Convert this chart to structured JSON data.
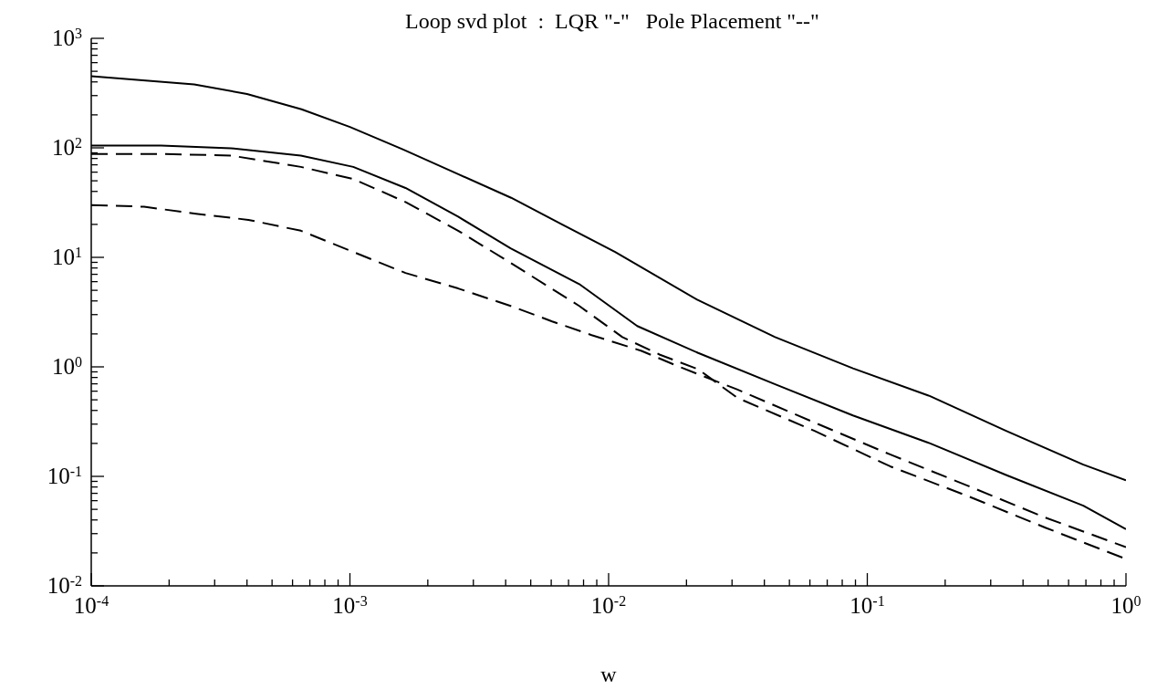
{
  "chart_data": {
    "type": "line",
    "title": "Loop svd plot  :  LQR \"-\"   Pole Placement \"--\"",
    "xlabel": "w",
    "log": "xy",
    "marker": "none",
    "xlim": [
      0.0001,
      1
    ],
    "ylim": [
      0.01,
      1000
    ],
    "xticks": [
      {
        "value": 0.0001,
        "label": "10$^{-4}$"
      },
      {
        "value": 0.0002,
        "label": null
      },
      {
        "value": 0.0003,
        "label": null
      },
      {
        "value": 0.0004,
        "label": null
      },
      {
        "value": 0.0005,
        "label": null
      },
      {
        "value": 0.0006,
        "label": null
      },
      {
        "value": 0.0007,
        "label": null
      },
      {
        "value": 0.0008,
        "label": null
      },
      {
        "value": 0.0009,
        "label": null
      },
      {
        "value": 0.001,
        "label": "10$^{-3}$"
      },
      {
        "value": 0.002,
        "label": null
      },
      {
        "value": 0.003,
        "label": null
      },
      {
        "value": 0.004,
        "label": null
      },
      {
        "value": 0.005,
        "label": null
      },
      {
        "value": 0.006,
        "label": null
      },
      {
        "value": 0.007,
        "label": null
      },
      {
        "value": 0.008,
        "label": null
      },
      {
        "value": 0.009,
        "label": null
      },
      {
        "value": 0.01,
        "label": "10$^{-2}$"
      },
      {
        "value": 0.02,
        "label": null
      },
      {
        "value": 0.03,
        "label": null
      },
      {
        "value": 0.04,
        "label": null
      },
      {
        "value": 0.05,
        "label": null
      },
      {
        "value": 0.06,
        "label": null
      },
      {
        "value": 0.07,
        "label": null
      },
      {
        "value": 0.08,
        "label": null
      },
      {
        "value": 0.09,
        "label": null
      },
      {
        "value": 0.1,
        "label": "10$^{-1}$"
      },
      {
        "value": 0.2,
        "label": null
      },
      {
        "value": 0.3,
        "label": null
      },
      {
        "value": 0.4,
        "label": null
      },
      {
        "value": 0.5,
        "label": null
      },
      {
        "value": 0.6,
        "label": null
      },
      {
        "value": 0.7,
        "label": null
      },
      {
        "value": 0.8,
        "label": null
      },
      {
        "value": 0.9,
        "label": null
      },
      {
        "value": 1,
        "label": "10$^{0}$"
      }
    ],
    "yticks": [
      {
        "value": 0.01,
        "label": "10$^{-2}$"
      },
      {
        "value": 0.02,
        "label": null
      },
      {
        "value": 0.03,
        "label": null
      },
      {
        "value": 0.04,
        "label": null
      },
      {
        "value": 0.05,
        "label": null
      },
      {
        "value": 0.06,
        "label": null
      },
      {
        "value": 0.07,
        "label": null
      },
      {
        "value": 0.08,
        "label": null
      },
      {
        "value": 0.09,
        "label": null
      },
      {
        "value": 0.1,
        "label": "10$^{-1}$"
      },
      {
        "value": 0.2,
        "label": null
      },
      {
        "value": 0.3,
        "label": null
      },
      {
        "value": 0.4,
        "label": null
      },
      {
        "value": 0.5,
        "label": null
      },
      {
        "value": 0.6,
        "label": null
      },
      {
        "value": 0.7,
        "label": null
      },
      {
        "value": 0.8,
        "label": null
      },
      {
        "value": 0.9,
        "label": null
      },
      {
        "value": 1,
        "label": "10$^{0}$"
      },
      {
        "value": 2,
        "label": null
      },
      {
        "value": 3,
        "label": null
      },
      {
        "value": 4,
        "label": null
      },
      {
        "value": 5,
        "label": null
      },
      {
        "value": 6,
        "label": null
      },
      {
        "value": 7,
        "label": null
      },
      {
        "value": 8,
        "label": null
      },
      {
        "value": 9,
        "label": null
      },
      {
        "value": 10,
        "label": "10$^{1}$"
      },
      {
        "value": 20,
        "label": null
      },
      {
        "value": 30,
        "label": null
      },
      {
        "value": 40,
        "label": null
      },
      {
        "value": 50,
        "label": null
      },
      {
        "value": 60,
        "label": null
      },
      {
        "value": 70,
        "label": null
      },
      {
        "value": 80,
        "label": null
      },
      {
        "value": 90,
        "label": null
      },
      {
        "value": 100,
        "label": "10$^{2}$"
      },
      {
        "value": 200,
        "label": null
      },
      {
        "value": 300,
        "label": null
      },
      {
        "value": 400,
        "label": null
      },
      {
        "value": 500,
        "label": null
      },
      {
        "value": 600,
        "label": null
      },
      {
        "value": 700,
        "label": null
      },
      {
        "value": 800,
        "label": null
      },
      {
        "value": 900,
        "label": null
      },
      {
        "value": 1000,
        "label": "10$^{3}$"
      }
    ],
    "series": [
      {
        "color": "#000000",
        "line_style": "solid",
        "x": [
          0.0001,
          0.00025,
          0.0004,
          0.00065,
          0.001,
          0.0016,
          0.0026,
          0.0042,
          0.0066,
          0.0106,
          0.022,
          0.044,
          0.088,
          0.175,
          0.344,
          0.684,
          1
        ],
        "values": [
          450,
          380,
          310,
          225,
          155,
          97,
          58,
          35,
          20,
          11.2,
          4.1,
          1.87,
          0.97,
          0.54,
          0.26,
          0.128,
          0.092
        ]
      },
      {
        "color": "#000000",
        "line_style": "solid",
        "x": [
          0.0001,
          0.000186,
          0.000347,
          0.000646,
          0.00103,
          0.00164,
          0.00262,
          0.00418,
          0.0077,
          0.0129,
          0.0222,
          0.0443,
          0.088,
          0.175,
          0.344,
          0.684,
          1
        ],
        "values": [
          105,
          105,
          99,
          85,
          67,
          43,
          23.5,
          12.1,
          5.7,
          2.36,
          1.34,
          0.69,
          0.36,
          0.2,
          0.103,
          0.054,
          0.033
        ]
      },
      {
        "color": "#000000",
        "line_style": "dashed",
        "x": [
          0.0001,
          0.000186,
          0.000347,
          0.000646,
          0.00103,
          0.00164,
          0.00262,
          0.00418,
          0.0077,
          0.0113,
          0.0158,
          0.0222,
          0.0315,
          0.0625,
          0.123,
          0.245,
          0.488,
          1
        ],
        "values": [
          88,
          88,
          85,
          67,
          52,
          32,
          17.5,
          8.9,
          3.6,
          1.87,
          1.29,
          0.95,
          0.52,
          0.26,
          0.123,
          0.066,
          0.034,
          0.0176
        ]
      },
      {
        "color": "#000000",
        "line_style": "dashed",
        "x": [
          0.0001,
          0.00016,
          0.000254,
          0.000405,
          0.000646,
          0.00103,
          0.00164,
          0.00262,
          0.00418,
          0.00605,
          0.0086,
          0.0134,
          0.0188,
          0.0315,
          0.0625,
          0.123,
          0.245,
          0.488,
          1
        ],
        "values": [
          30,
          29,
          25,
          22,
          17.5,
          11.2,
          7.2,
          5.2,
          3.6,
          2.6,
          1.95,
          1.4,
          1.0,
          0.62,
          0.31,
          0.158,
          0.082,
          0.042,
          0.0226
        ]
      }
    ]
  }
}
